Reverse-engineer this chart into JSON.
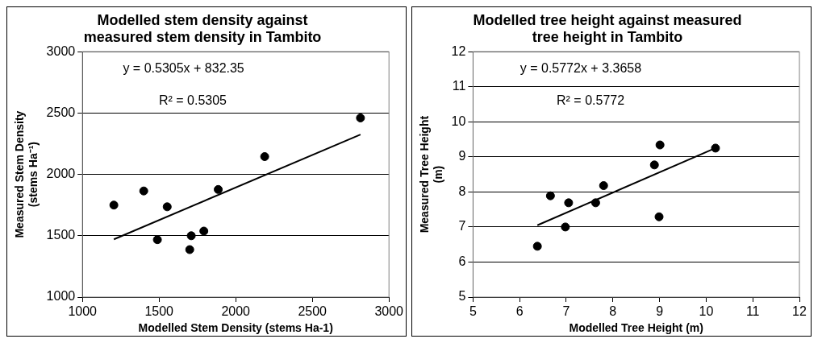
{
  "chart_data": [
    {
      "type": "scatter",
      "title": "Modelled stem density against measured stem density in Tambito",
      "xlabel": "Modelled Stem Density (stems Ha-1)",
      "ylabel": "Measured Stem Density (stems Ha⁻¹)",
      "xlim": [
        1000,
        3000
      ],
      "xticks": [
        1000,
        1500,
        2000,
        2500,
        3000
      ],
      "ylim": [
        1000,
        3000
      ],
      "yticks": [
        1000,
        1500,
        2000,
        2500,
        3000
      ],
      "grid": "y",
      "legend": false,
      "annotations": [
        "y = 0.5305x + 832.35",
        "R² = 0.5305"
      ],
      "series": [
        {
          "marker": "circle",
          "color": "#000000",
          "x": [
            1205,
            1400,
            1489,
            1553,
            1710,
            1700,
            1792,
            1886,
            2189,
            2814
          ],
          "values": [
            1750,
            1865,
            1468,
            1736,
            1500,
            1387,
            1538,
            1877,
            2145,
            2460
          ]
        },
        {
          "type": "line",
          "marker": "none",
          "color": "#000000",
          "x": [
            1205,
            2814
          ],
          "values": [
            1471,
            2325
          ]
        }
      ]
    },
    {
      "type": "scatter",
      "title": "Modelled tree height against measured tree height in Tambito",
      "xlabel": "Modelled Tree Height (m)",
      "ylabel": "Measured Tree Height (m)",
      "xlim": [
        5,
        12
      ],
      "xticks": [
        5,
        6,
        7,
        8,
        9,
        10,
        11,
        12
      ],
      "ylim": [
        5,
        12
      ],
      "yticks": [
        5,
        6,
        7,
        8,
        9,
        10,
        11,
        12
      ],
      "grid": "y",
      "legend": false,
      "annotations": [
        "y = 0.5772x + 3.3658",
        "R² = 0.5772"
      ],
      "series": [
        {
          "marker": "circle",
          "color": "#000000",
          "x": [
            6.38,
            6.66,
            6.98,
            7.05,
            7.63,
            7.8,
            8.89,
            9.01,
            8.99,
            10.2
          ],
          "values": [
            6.45,
            7.89,
            7.0,
            7.69,
            7.69,
            8.18,
            8.77,
            9.34,
            7.29,
            9.25
          ]
        },
        {
          "type": "line",
          "marker": "none",
          "color": "#000000",
          "x": [
            6.38,
            10.2
          ],
          "values": [
            7.05,
            9.25
          ]
        }
      ]
    }
  ]
}
